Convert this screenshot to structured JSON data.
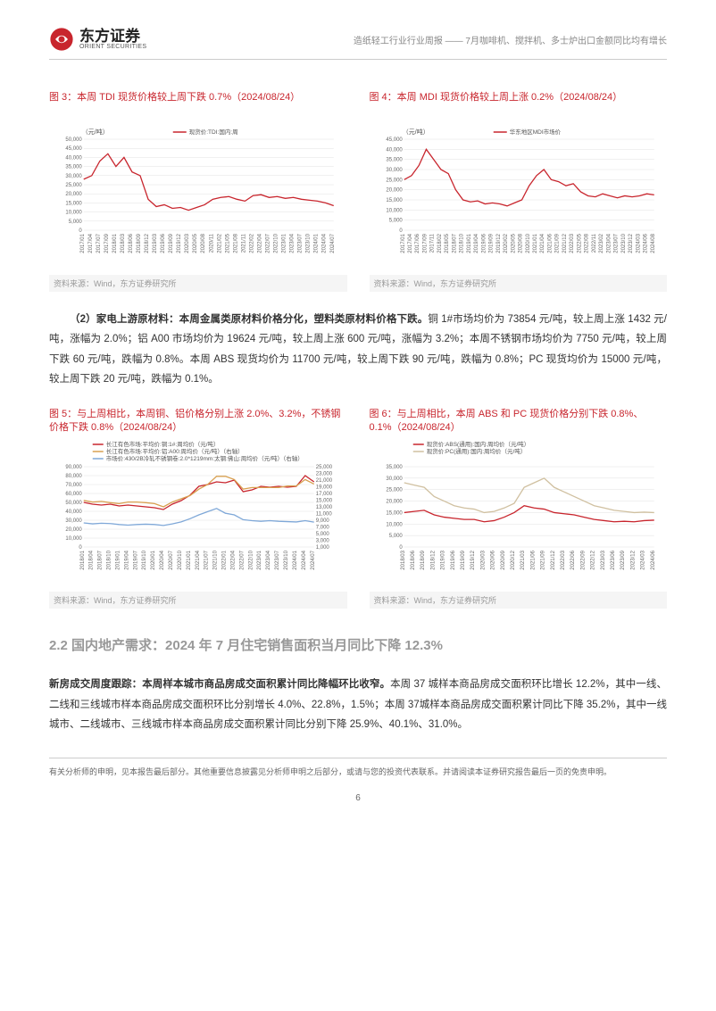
{
  "header": {
    "logo_cn": "东方证券",
    "logo_en": "ORIENT SECURITIES",
    "right_text": "造纸轻工行业行业周报 —— 7月咖啡机、搅拌机、多士炉出口金额同比均有增长"
  },
  "chart3": {
    "type": "line",
    "title": "图 3：本周 TDI 现货价格较上周下跌 0.7%（2024/08/24）",
    "ylabel": "（元/吨）",
    "legend": [
      "现货价:TDI:国内:周"
    ],
    "line_color": "#c8252d",
    "background_color": "#ffffff",
    "grid_color": "#e0e0e0",
    "ylim": [
      0,
      50000
    ],
    "ytick_step": 5000,
    "yticks": [
      "0",
      "5,000",
      "10,000",
      "15,000",
      "20,000",
      "25,000",
      "30,000",
      "35,000",
      "40,000",
      "45,000",
      "50,000"
    ],
    "xlabels": [
      "2017/01",
      "2017/04",
      "2017/07",
      "2017/09",
      "2018/01",
      "2018/03",
      "2018/06",
      "2018/09",
      "2018/12",
      "2019/03",
      "2019/06",
      "2019/09",
      "2019/12",
      "2020/03",
      "2020/05",
      "2020/08",
      "2020/11",
      "2021/02",
      "2021/05",
      "2021/08",
      "2021/11",
      "2022/02",
      "2022/04",
      "2022/07",
      "2022/10",
      "2023/01",
      "2023/04",
      "2023/07",
      "2023/10",
      "2024/01",
      "2024/04",
      "2024/07"
    ],
    "data": [
      28000,
      30000,
      38000,
      42000,
      35000,
      40000,
      32000,
      30000,
      17000,
      13000,
      14000,
      12000,
      12500,
      11000,
      12500,
      14000,
      17000,
      18000,
      18500,
      17000,
      16000,
      19000,
      19500,
      18000,
      18500,
      17500,
      18000,
      17000,
      16500,
      16000,
      15000,
      13500
    ],
    "source": "资料来源：Wind，东方证券研究所"
  },
  "chart4": {
    "type": "line",
    "title": "图 4：本周 MDI 现货价格较上周上涨 0.2%（2024/08/24）",
    "ylabel": "（元/吨）",
    "legend": [
      "华东地区MDI市场价"
    ],
    "line_color": "#c8252d",
    "background_color": "#ffffff",
    "grid_color": "#e0e0e0",
    "ylim": [
      0,
      45000
    ],
    "ytick_step": 5000,
    "yticks": [
      "0",
      "5,000",
      "10,000",
      "15,000",
      "20,000",
      "25,000",
      "30,000",
      "35,000",
      "40,000",
      "45,000"
    ],
    "xlabels": [
      "2017/01",
      "2017/04",
      "2017/06",
      "2017/09",
      "2017/11",
      "2018/02",
      "2018/05",
      "2018/07",
      "2018/10",
      "2019/01",
      "2019/04",
      "2019/06",
      "2019/09",
      "2019/12",
      "2020/02",
      "2020/05",
      "2020/08",
      "2020/10",
      "2021/01",
      "2021/04",
      "2021/06",
      "2021/09",
      "2021/12",
      "2022/03",
      "2022/05",
      "2022/08",
      "2022/11",
      "2023/02",
      "2023/04",
      "2023/07",
      "2023/10",
      "2023/12",
      "2024/03",
      "2024/06",
      "2024/08"
    ],
    "data": [
      25000,
      27000,
      32000,
      40000,
      35000,
      30000,
      28000,
      20000,
      15000,
      14000,
      14500,
      13000,
      13500,
      13000,
      12000,
      13500,
      15000,
      22000,
      27000,
      30000,
      25000,
      24000,
      22000,
      23000,
      19000,
      17000,
      16500,
      18000,
      17000,
      16000,
      17000,
      16500,
      17000,
      18000,
      17500
    ],
    "source": "资料来源：Wind，东方证券研究所"
  },
  "paragraph1": {
    "lead": "（2）家电上游原材料：本周金属类原材料价格分化，塑料类原材料价格下跌。",
    "rest": "铜 1#市场均价为 73854 元/吨，较上周上涨 1432 元/吨，涨幅为 2.0%；铝 A00 市场均价为 19624 元/吨，较上周上涨 600 元/吨，涨幅为 3.2%；本周不锈钢市场均价为 7750 元/吨，较上周下跌 60 元/吨，跌幅为 0.8%。本周 ABS 现货均价为 11700 元/吨，较上周下跌 90 元/吨，跌幅为 0.8%；PC 现货均价为 15000 元/吨，较上周下跌 20 元/吨，跌幅为 0.1%。"
  },
  "chart5": {
    "type": "line-dual",
    "title": "图 5：与上周相比，本周铜、铝价格分别上涨 2.0%、3.2%，不锈钢价格下跌 0.8%（2024/08/24）",
    "ylabel": "",
    "legend": [
      "长江有色市场:平均价:铜:1#:周均价（元/吨）",
      "长江有色市场:平均价:铝:A00:周均价（元/吨）（右轴）",
      "市场价:430/2B冷轧不锈钢卷:2.0*1219mm:太钢:佛山:周均价（元/吨）（右轴）"
    ],
    "colors": [
      "#c8252d",
      "#d8a050",
      "#7fa8d8"
    ],
    "background_color": "#ffffff",
    "grid_color": "#e0e0e0",
    "ylim_left": [
      0,
      90000
    ],
    "ytick_step_left": 10000,
    "yticks_left": [
      "0",
      "10,000",
      "20,000",
      "30,000",
      "40,000",
      "50,000",
      "60,000",
      "70,000",
      "80,000",
      "90,000"
    ],
    "ylim_right": [
      0,
      25000
    ],
    "yticks_right": [
      "1,000",
      "3,000",
      "5,000",
      "7,000",
      "9,000",
      "11,000",
      "13,000",
      "15,000",
      "17,000",
      "19,000",
      "21,000",
      "23,000",
      "25,000"
    ],
    "xlabels": [
      "2018/01",
      "2018/04",
      "2018/07",
      "2018/10",
      "2019/01",
      "2019/04",
      "2019/07",
      "2019/10",
      "2020/01",
      "2020/04",
      "2020/07",
      "2020/10",
      "2021/01",
      "2021/04",
      "2021/07",
      "2021/10",
      "2022/01",
      "2022/04",
      "2022/07",
      "2022/10",
      "2023/01",
      "2023/04",
      "2023/07",
      "2023/10",
      "2024/01",
      "2024/04",
      "2024/07"
    ],
    "series1": [
      50000,
      48000,
      47000,
      48000,
      46000,
      47000,
      46000,
      45000,
      44000,
      42000,
      48000,
      52000,
      58000,
      68000,
      70000,
      73000,
      72000,
      75000,
      62000,
      64000,
      68000,
      67000,
      68000,
      67000,
      68000,
      80000,
      73000
    ],
    "series2": [
      14500,
      14000,
      14200,
      13800,
      13500,
      14000,
      14000,
      13800,
      13500,
      12500,
      14000,
      15000,
      16000,
      18000,
      19500,
      22000,
      22000,
      21000,
      18000,
      18500,
      18500,
      18500,
      18500,
      19000,
      19000,
      21000,
      19600
    ],
    "series3": [
      7500,
      7200,
      7400,
      7300,
      7000,
      6800,
      7000,
      7100,
      7000,
      6700,
      7200,
      7800,
      8800,
      10000,
      11000,
      12000,
      10500,
      10000,
      8500,
      8200,
      8000,
      8200,
      8000,
      7900,
      7800,
      8200,
      7750
    ],
    "source": "资料来源：Wind，东方证券研究所"
  },
  "chart6": {
    "type": "line",
    "title": "图 6：与上周相比，本周 ABS 和 PC 现货价格分别下跌 0.8%、0.1%（2024/08/24）",
    "ylabel": "",
    "legend": [
      "现货价:ABS(通用):国内:周均价（元/吨）",
      "现货价:PC(通用):国内:周均价（元/吨）"
    ],
    "colors": [
      "#c8252d",
      "#d0c0a0"
    ],
    "background_color": "#ffffff",
    "grid_color": "#e0e0e0",
    "ylim": [
      0,
      35000
    ],
    "ytick_step": 5000,
    "yticks": [
      "0",
      "5,000",
      "10,000",
      "15,000",
      "20,000",
      "25,000",
      "30,000",
      "35,000"
    ],
    "xlabels": [
      "2018/03",
      "2018/06",
      "2018/09",
      "2018/12",
      "2019/03",
      "2019/06",
      "2019/09",
      "2019/12",
      "2020/03",
      "2020/06",
      "2020/09",
      "2020/12",
      "2021/03",
      "2021/06",
      "2021/09",
      "2021/12",
      "2022/03",
      "2022/06",
      "2022/09",
      "2022/12",
      "2023/03",
      "2023/06",
      "2023/09",
      "2023/12",
      "2024/03",
      "2024/06"
    ],
    "series1": [
      15000,
      15500,
      16000,
      14000,
      13000,
      12500,
      12000,
      12000,
      11000,
      11500,
      13000,
      15000,
      18000,
      17000,
      16500,
      15000,
      14500,
      14000,
      13000,
      12000,
      11500,
      11000,
      11200,
      11000,
      11500,
      11700
    ],
    "series2": [
      28000,
      27000,
      26000,
      22000,
      20000,
      18000,
      17000,
      16500,
      15000,
      15500,
      17000,
      19000,
      26000,
      28000,
      30000,
      26000,
      24000,
      22000,
      20000,
      18000,
      17000,
      16000,
      15500,
      15000,
      15200,
      15000
    ],
    "source": "资料来源：Wind，东方证券研究所"
  },
  "section2_2": {
    "title": "2.2 国内地产需求：2024 年 7 月住宅销售面积当月同比下降 12.3%"
  },
  "paragraph2": {
    "lead": "新房成交周度跟踪：本周样本城市商品房成交面积累计同比降幅环比收窄。",
    "rest": "本周 37 城样本商品房成交面积环比增长 12.2%，其中一线、二线和三线城市样本商品房成交面积环比分别增长 4.0%、22.8%，1.5%；本周 37城样本商品房成交面积累计同比下降 35.2%，其中一线城市、二线城市、三线城市样本商品房成交面积累计同比分别下降 25.9%、40.1%、31.0%。"
  },
  "footer": {
    "text": "有关分析师的申明，见本报告最后部分。其他重要信息披露见分析师申明之后部分，或请与您的投资代表联系。并请阅读本证券研究报告最后一页的免责申明。",
    "page_num": "6"
  }
}
